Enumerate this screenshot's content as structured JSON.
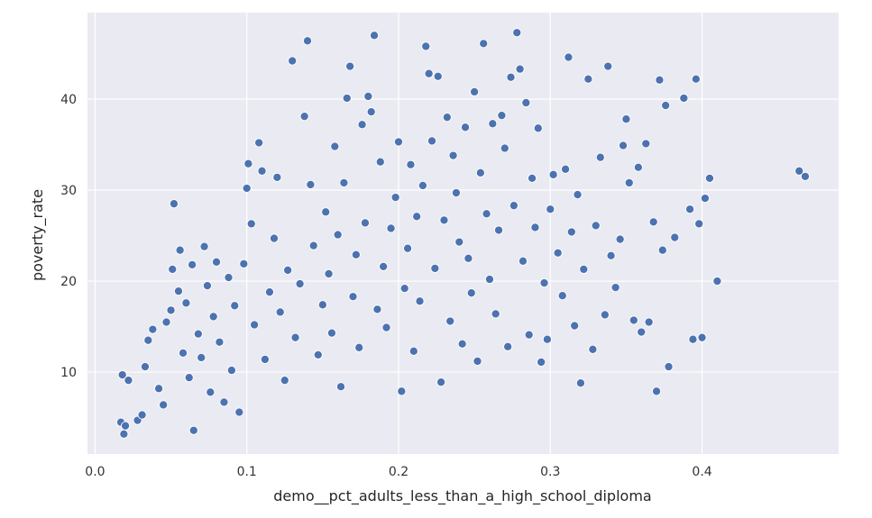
{
  "chart_data": {
    "type": "scatter",
    "xlabel": "demo__pct_adults_less_than_a_high_school_diploma",
    "ylabel": "poverty_rate",
    "xlim": [
      -0.005,
      0.49
    ],
    "ylim": [
      1.0,
      49.5
    ],
    "x_ticks": [
      "0.0",
      "0.1",
      "0.2",
      "0.3",
      "0.4"
    ],
    "x_tick_values": [
      0.0,
      0.1,
      0.2,
      0.3,
      0.4
    ],
    "y_ticks": [
      "10",
      "20",
      "30",
      "40"
    ],
    "y_tick_values": [
      10,
      20,
      30,
      40
    ],
    "grid": true,
    "colors": {
      "background": "#eaeaf2",
      "grid": "#ffffff",
      "point": "#4c72b0"
    },
    "points": [
      [
        0.017,
        4.5
      ],
      [
        0.019,
        3.2
      ],
      [
        0.02,
        4.1
      ],
      [
        0.018,
        9.7
      ],
      [
        0.022,
        9.1
      ],
      [
        0.028,
        4.7
      ],
      [
        0.031,
        5.3
      ],
      [
        0.033,
        10.6
      ],
      [
        0.035,
        13.5
      ],
      [
        0.038,
        14.7
      ],
      [
        0.042,
        8.2
      ],
      [
        0.045,
        6.4
      ],
      [
        0.047,
        15.5
      ],
      [
        0.05,
        16.8
      ],
      [
        0.051,
        21.3
      ],
      [
        0.052,
        28.5
      ],
      [
        0.055,
        18.9
      ],
      [
        0.056,
        23.4
      ],
      [
        0.058,
        12.1
      ],
      [
        0.06,
        17.6
      ],
      [
        0.062,
        9.4
      ],
      [
        0.064,
        21.8
      ],
      [
        0.065,
        3.6
      ],
      [
        0.068,
        14.2
      ],
      [
        0.07,
        11.6
      ],
      [
        0.072,
        23.8
      ],
      [
        0.074,
        19.5
      ],
      [
        0.076,
        7.8
      ],
      [
        0.078,
        16.1
      ],
      [
        0.08,
        22.1
      ],
      [
        0.082,
        13.3
      ],
      [
        0.085,
        6.7
      ],
      [
        0.088,
        20.4
      ],
      [
        0.09,
        10.2
      ],
      [
        0.092,
        17.3
      ],
      [
        0.095,
        5.6
      ],
      [
        0.098,
        21.9
      ],
      [
        0.1,
        30.2
      ],
      [
        0.101,
        32.9
      ],
      [
        0.103,
        26.3
      ],
      [
        0.105,
        15.2
      ],
      [
        0.108,
        35.2
      ],
      [
        0.11,
        32.1
      ],
      [
        0.112,
        11.4
      ],
      [
        0.115,
        18.8
      ],
      [
        0.118,
        24.7
      ],
      [
        0.12,
        31.4
      ],
      [
        0.122,
        16.6
      ],
      [
        0.125,
        9.1
      ],
      [
        0.127,
        21.2
      ],
      [
        0.13,
        44.2
      ],
      [
        0.132,
        13.8
      ],
      [
        0.135,
        19.7
      ],
      [
        0.138,
        38.1
      ],
      [
        0.14,
        46.4
      ],
      [
        0.142,
        30.6
      ],
      [
        0.144,
        23.9
      ],
      [
        0.147,
        11.9
      ],
      [
        0.15,
        17.4
      ],
      [
        0.152,
        27.6
      ],
      [
        0.154,
        20.8
      ],
      [
        0.156,
        14.3
      ],
      [
        0.158,
        34.8
      ],
      [
        0.16,
        25.1
      ],
      [
        0.162,
        8.4
      ],
      [
        0.164,
        30.8
      ],
      [
        0.166,
        40.1
      ],
      [
        0.168,
        43.6
      ],
      [
        0.17,
        18.3
      ],
      [
        0.172,
        22.9
      ],
      [
        0.174,
        12.7
      ],
      [
        0.176,
        37.2
      ],
      [
        0.178,
        26.4
      ],
      [
        0.18,
        40.3
      ],
      [
        0.182,
        38.6
      ],
      [
        0.184,
        47.0
      ],
      [
        0.186,
        16.9
      ],
      [
        0.188,
        33.1
      ],
      [
        0.19,
        21.6
      ],
      [
        0.192,
        14.9
      ],
      [
        0.195,
        25.8
      ],
      [
        0.198,
        29.2
      ],
      [
        0.2,
        35.3
      ],
      [
        0.202,
        7.9
      ],
      [
        0.204,
        19.2
      ],
      [
        0.206,
        23.6
      ],
      [
        0.208,
        32.8
      ],
      [
        0.21,
        12.3
      ],
      [
        0.212,
        27.1
      ],
      [
        0.214,
        17.8
      ],
      [
        0.216,
        30.5
      ],
      [
        0.218,
        45.8
      ],
      [
        0.22,
        42.8
      ],
      [
        0.222,
        35.4
      ],
      [
        0.224,
        21.4
      ],
      [
        0.226,
        42.5
      ],
      [
        0.228,
        8.9
      ],
      [
        0.23,
        26.7
      ],
      [
        0.232,
        38.0
      ],
      [
        0.234,
        15.6
      ],
      [
        0.236,
        33.8
      ],
      [
        0.238,
        29.7
      ],
      [
        0.24,
        24.3
      ],
      [
        0.242,
        13.1
      ],
      [
        0.244,
        36.9
      ],
      [
        0.246,
        22.5
      ],
      [
        0.248,
        18.7
      ],
      [
        0.25,
        40.8
      ],
      [
        0.252,
        11.2
      ],
      [
        0.254,
        31.9
      ],
      [
        0.256,
        46.1
      ],
      [
        0.258,
        27.4
      ],
      [
        0.26,
        20.2
      ],
      [
        0.262,
        37.3
      ],
      [
        0.264,
        16.4
      ],
      [
        0.266,
        25.6
      ],
      [
        0.268,
        38.2
      ],
      [
        0.27,
        34.6
      ],
      [
        0.272,
        12.8
      ],
      [
        0.274,
        42.4
      ],
      [
        0.276,
        28.3
      ],
      [
        0.278,
        47.3
      ],
      [
        0.28,
        43.3
      ],
      [
        0.282,
        22.2
      ],
      [
        0.284,
        39.6
      ],
      [
        0.286,
        14.1
      ],
      [
        0.288,
        31.3
      ],
      [
        0.29,
        25.9
      ],
      [
        0.292,
        36.8
      ],
      [
        0.294,
        11.1
      ],
      [
        0.296,
        19.8
      ],
      [
        0.298,
        13.6
      ],
      [
        0.3,
        27.9
      ],
      [
        0.302,
        31.7
      ],
      [
        0.305,
        23.1
      ],
      [
        0.308,
        18.4
      ],
      [
        0.31,
        32.3
      ],
      [
        0.312,
        44.6
      ],
      [
        0.314,
        25.4
      ],
      [
        0.316,
        15.1
      ],
      [
        0.318,
        29.5
      ],
      [
        0.32,
        8.8
      ],
      [
        0.322,
        21.3
      ],
      [
        0.325,
        42.2
      ],
      [
        0.328,
        12.5
      ],
      [
        0.33,
        26.1
      ],
      [
        0.333,
        33.6
      ],
      [
        0.336,
        16.3
      ],
      [
        0.338,
        43.6
      ],
      [
        0.34,
        22.8
      ],
      [
        0.343,
        19.3
      ],
      [
        0.346,
        24.6
      ],
      [
        0.348,
        34.9
      ],
      [
        0.35,
        37.8
      ],
      [
        0.352,
        30.8
      ],
      [
        0.355,
        15.7
      ],
      [
        0.358,
        32.5
      ],
      [
        0.36,
        14.4
      ],
      [
        0.363,
        35.1
      ],
      [
        0.365,
        15.5
      ],
      [
        0.368,
        26.5
      ],
      [
        0.37,
        7.9
      ],
      [
        0.372,
        42.1
      ],
      [
        0.374,
        23.4
      ],
      [
        0.376,
        39.3
      ],
      [
        0.378,
        10.6
      ],
      [
        0.382,
        24.8
      ],
      [
        0.388,
        40.1
      ],
      [
        0.392,
        27.9
      ],
      [
        0.394,
        13.6
      ],
      [
        0.396,
        42.2
      ],
      [
        0.398,
        26.3
      ],
      [
        0.4,
        13.8
      ],
      [
        0.402,
        29.1
      ],
      [
        0.405,
        31.3
      ],
      [
        0.41,
        20.0
      ],
      [
        0.464,
        32.1
      ],
      [
        0.468,
        31.5
      ]
    ]
  }
}
